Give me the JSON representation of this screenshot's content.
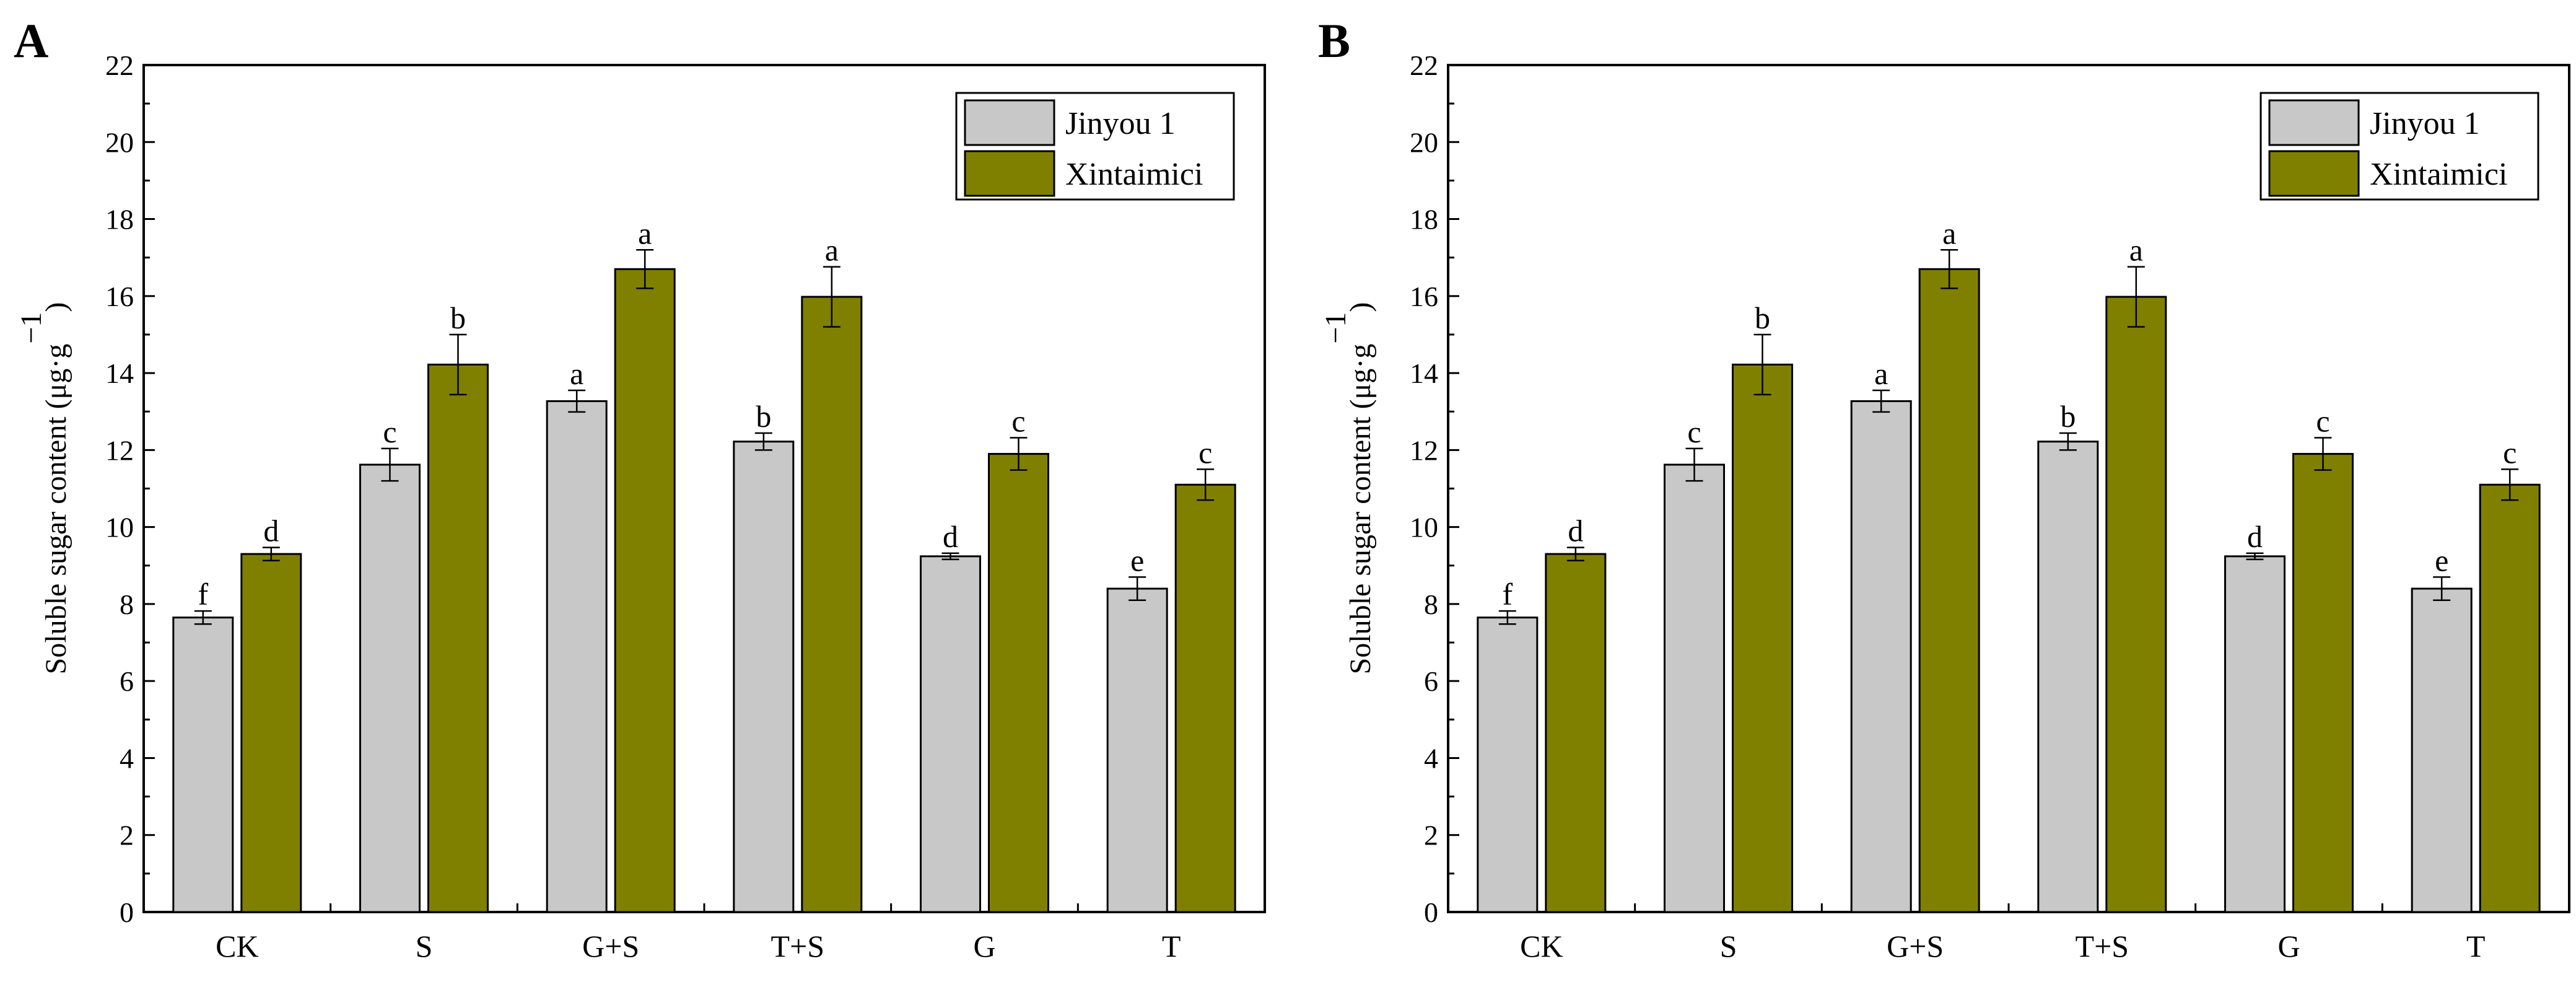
{
  "figure": {
    "panels": [
      "A",
      "B"
    ]
  },
  "colors": {
    "jinyou": "#c8c8c8",
    "xintaimici": "#808000",
    "stroke": "#000000"
  },
  "chart_data": [
    {
      "panel": "A",
      "type": "bar",
      "title": "",
      "xlabel": "",
      "ylabel": "Soluble sugar content (μg·g",
      "ylabel_superscript": "−1",
      "ylabel_close": ")",
      "ylim": [
        0,
        22
      ],
      "yticks": [
        "0",
        "2",
        "4",
        "6",
        "8",
        "10",
        "12",
        "14",
        "16",
        "18",
        "20",
        "22"
      ],
      "categories": [
        "CK",
        "S",
        "G+S",
        "T+S",
        "G",
        "T"
      ],
      "legend": {
        "position": "top-right"
      },
      "series": [
        {
          "name": "Jinyou 1",
          "values": [
            7.65,
            11.62,
            13.27,
            12.22,
            9.24,
            8.4
          ],
          "errors": [
            0.17,
            0.42,
            0.28,
            0.22,
            0.08,
            0.3
          ],
          "labels": [
            "f",
            "c",
            "a",
            "b",
            "d",
            "e"
          ]
        },
        {
          "name": "Xintaimici",
          "values": [
            9.3,
            14.22,
            16.7,
            15.98,
            11.9,
            11.1
          ],
          "errors": [
            0.17,
            0.78,
            0.5,
            0.78,
            0.42,
            0.4
          ],
          "labels": [
            "d",
            "b",
            "a",
            "a",
            "c",
            "c"
          ]
        }
      ]
    },
    {
      "panel": "B",
      "type": "bar",
      "title": "",
      "xlabel": "",
      "ylabel": "Soluble sugar content (μg·g",
      "ylabel_superscript": "−1",
      "ylabel_close": ")",
      "ylim": [
        0,
        22
      ],
      "yticks": [
        "0",
        "2",
        "4",
        "6",
        "8",
        "10",
        "12",
        "14",
        "16",
        "18",
        "20",
        "22"
      ],
      "categories": [
        "CK",
        "S",
        "G+S",
        "T+S",
        "G",
        "T"
      ],
      "legend": {
        "position": "top-right"
      },
      "series": [
        {
          "name": "Jinyou 1",
          "values": [
            7.65,
            11.62,
            13.27,
            12.22,
            9.24,
            8.4
          ],
          "errors": [
            0.17,
            0.42,
            0.28,
            0.22,
            0.08,
            0.3
          ],
          "labels": [
            "f",
            "c",
            "a",
            "b",
            "d",
            "e"
          ]
        },
        {
          "name": "Xintaimici",
          "values": [
            9.3,
            14.22,
            16.7,
            15.98,
            11.9,
            11.1
          ],
          "errors": [
            0.17,
            0.78,
            0.5,
            0.78,
            0.42,
            0.4
          ],
          "labels": [
            "d",
            "b",
            "a",
            "a",
            "c",
            "c"
          ]
        }
      ]
    }
  ]
}
